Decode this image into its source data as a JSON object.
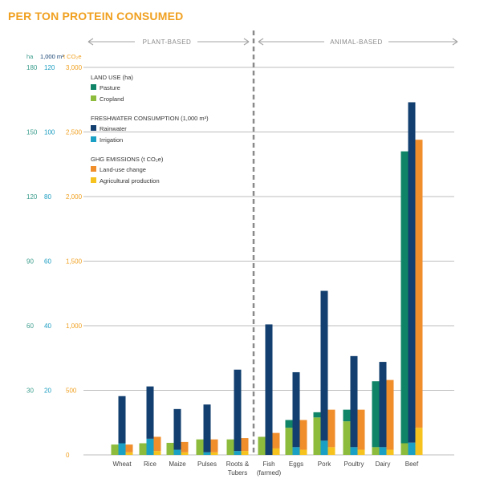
{
  "colors": {
    "pasture": "#0f8466",
    "cropland": "#8dbb3c",
    "rainwater": "#123f6f",
    "irrigation": "#1aa0c4",
    "landuse_change": "#f08e2c",
    "agri_production": "#f6c21d",
    "title": "#f0a020",
    "ha_axis": "#3a9c8c",
    "water_axis": "#1a9cc0",
    "ghg_axis": "#f0a020",
    "grid": "#bdbdbd",
    "divider": "#8a8a8a",
    "text": "#444444"
  },
  "chart_data": {
    "type": "bar",
    "title": "PER TON PROTEIN CONSUMED",
    "groups": [
      "PLANT-BASED",
      "ANIMAL-BASED"
    ],
    "categories": [
      "Wheat",
      "Rice",
      "Maize",
      "Pulses",
      "Roots & Tubers",
      "Fish (farmed)",
      "Eggs",
      "Pork",
      "Poultry",
      "Dairy",
      "Beef"
    ],
    "category_lines": [
      [
        "Wheat"
      ],
      [
        "Rice"
      ],
      [
        "Maize"
      ],
      [
        "Pulses"
      ],
      [
        "Roots &",
        "Tubers"
      ],
      [
        "Fish",
        "(farmed)"
      ],
      [
        "Eggs"
      ],
      [
        "Pork"
      ],
      [
        "Poultry"
      ],
      [
        "Dairy"
      ],
      [
        "Beef"
      ]
    ],
    "axes": {
      "land_use": {
        "label": "ha",
        "ticks": [
          30,
          60,
          90,
          120,
          150,
          180
        ],
        "range": [
          0,
          180
        ]
      },
      "freshwater": {
        "label": "1,000 m³",
        "ticks": [
          20,
          40,
          60,
          80,
          100,
          120
        ],
        "range": [
          0,
          120
        ]
      },
      "ghg": {
        "label": "t CO₂e",
        "ticks": [
          "0",
          "500",
          "1,000",
          "1,500",
          "2,000",
          "2,500",
          "3,000"
        ],
        "range": [
          0,
          3000
        ]
      }
    },
    "legend": {
      "land_use": {
        "title": "LAND USE (ha)",
        "items": [
          "Pasture",
          "Cropland"
        ]
      },
      "freshwater": {
        "title": "FRESHWATER CONSUMPTION (1,000 m³)",
        "items": [
          "Rainwater",
          "Irrigation"
        ]
      },
      "ghg": {
        "title": "GHG EMISSIONS (t CO₂e)",
        "items": [
          "Land-use change",
          "Agricultural production"
        ]
      }
    },
    "series": {
      "land_use_ha": {
        "cropland": [
          4.8,
          5.4,
          5.6,
          7.2,
          7.2,
          8.4,
          12.6,
          17.4,
          15.6,
          3.6,
          5.4
        ],
        "pasture": [
          0,
          0,
          0,
          0,
          0,
          0,
          3.6,
          2.4,
          5.4,
          30.6,
          135.6
        ]
      },
      "freshwater_1000m3": {
        "irrigation": [
          3.6,
          5.0,
          1.6,
          0.8,
          1.2,
          0,
          2.4,
          4.4,
          2.4,
          2.4,
          3.8
        ],
        "rainwater": [
          14.6,
          16.2,
          12.6,
          14.8,
          25.2,
          40.4,
          23.2,
          46.4,
          28.2,
          26.4,
          105.4
        ]
      },
      "ghg_tco2e": {
        "agricultural_production": [
          20,
          30,
          20,
          20,
          30,
          50,
          40,
          60,
          40,
          40,
          210
        ],
        "landuse_change": [
          60,
          110,
          80,
          100,
          100,
          120,
          230,
          290,
          310,
          540,
          2230
        ]
      }
    },
    "grid": true,
    "legend_position": "top-left"
  }
}
